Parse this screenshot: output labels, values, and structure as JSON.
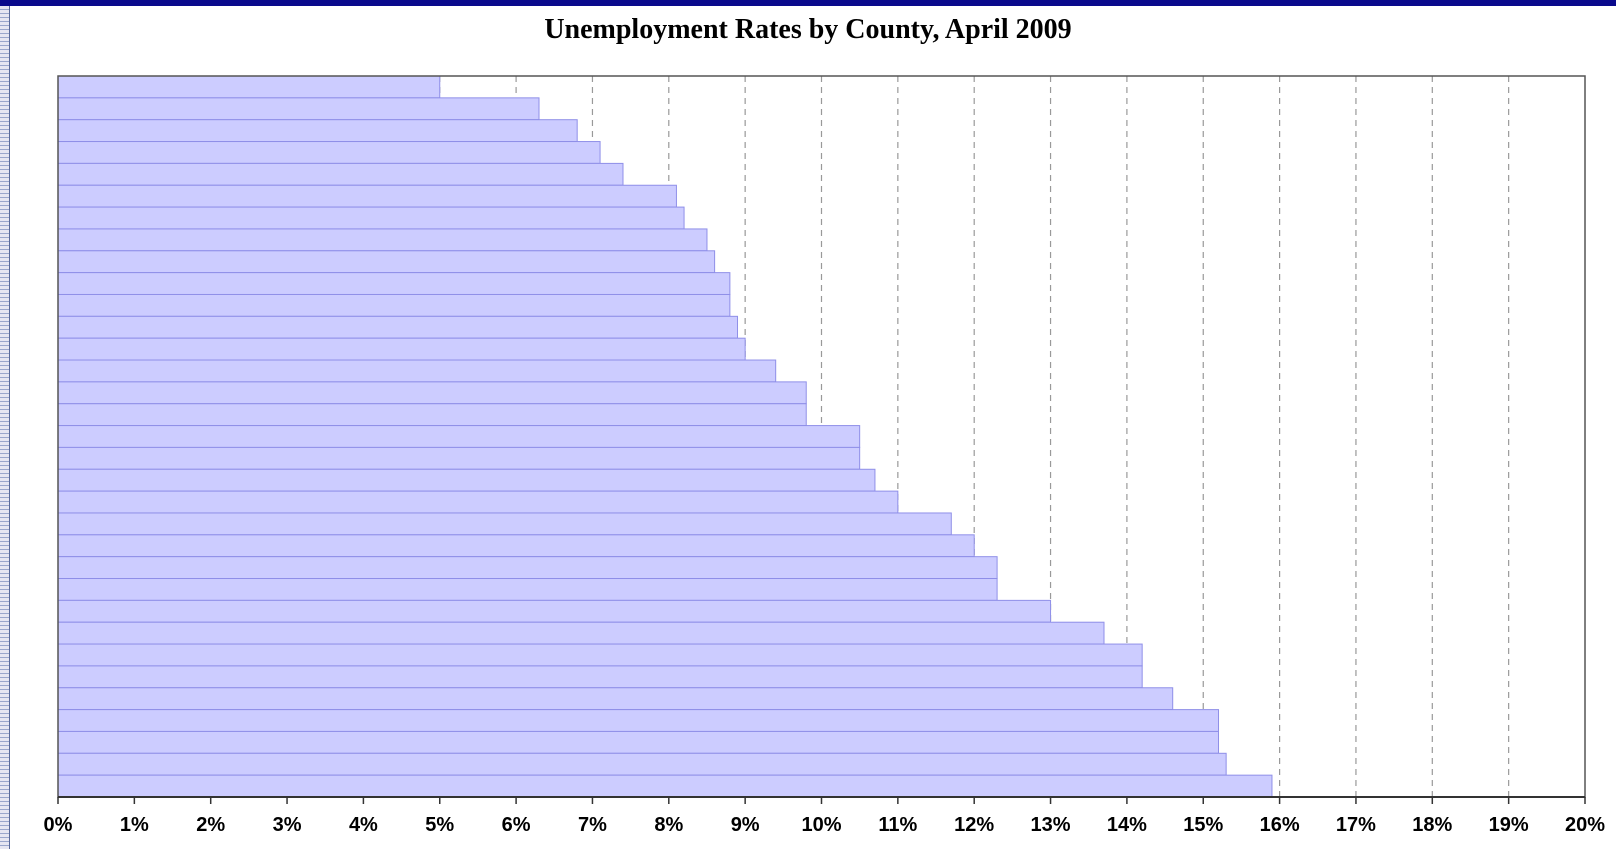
{
  "colors": {
    "bar_fill": "#ccccff",
    "bar_stroke": "#8f8fe8",
    "grid": "#999999",
    "axis": "#555555",
    "frame_top": "#0a0a8c"
  },
  "chart_data": {
    "type": "bar",
    "orientation": "horizontal",
    "title": "Unemployment Rates by County, April 2009",
    "xlabel": "",
    "ylabel": "",
    "xlim": [
      0,
      20
    ],
    "x_ticks": [
      "0%",
      "1%",
      "2%",
      "3%",
      "4%",
      "5%",
      "6%",
      "7%",
      "8%",
      "9%",
      "10%",
      "11%",
      "12%",
      "13%",
      "14%",
      "15%",
      "16%",
      "17%",
      "18%",
      "19%",
      "20%"
    ],
    "grid": "vertical dashed",
    "legend": "none",
    "values": [
      5.0,
      6.3,
      6.8,
      7.1,
      7.4,
      8.1,
      8.2,
      8.5,
      8.6,
      8.8,
      8.8,
      8.9,
      9.0,
      9.4,
      9.8,
      9.8,
      10.5,
      10.5,
      10.7,
      11.0,
      11.7,
      12.0,
      12.3,
      12.3,
      13.0,
      13.7,
      14.2,
      14.2,
      14.6,
      15.2,
      15.2,
      15.3,
      15.9
    ]
  }
}
